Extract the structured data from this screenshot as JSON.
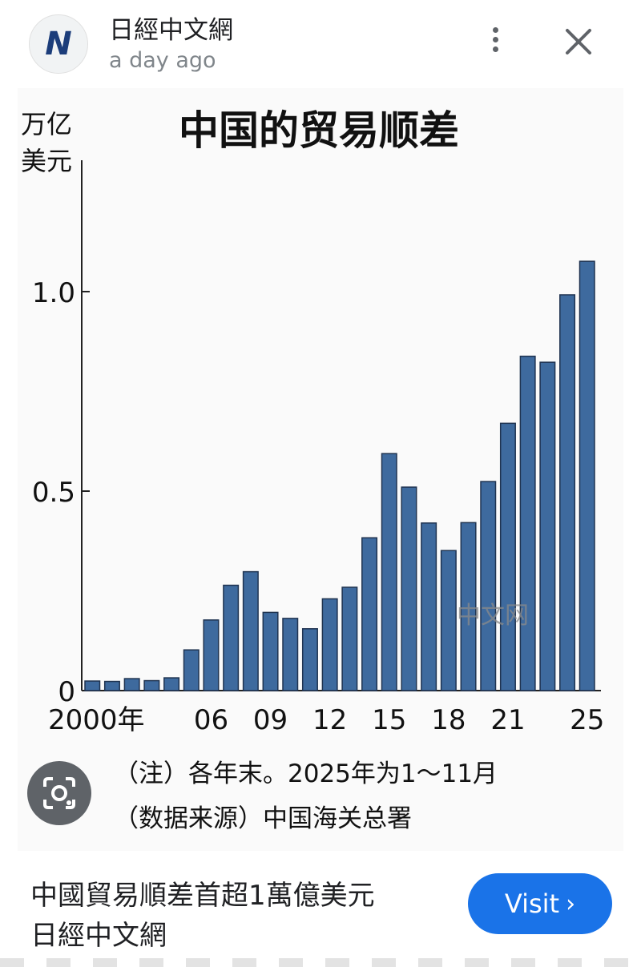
{
  "header": {
    "source_name": "日經中文網",
    "timestamp": "a day ago",
    "logo_letter": "N",
    "menu_icon": "more-vert-icon",
    "close_icon": "close-icon"
  },
  "image": {
    "lens_icon": "google-lens-icon",
    "watermark": "中文网"
  },
  "chart_data": {
    "type": "bar",
    "title": "中国的贸易顺差",
    "ylabel_line1": "万亿",
    "ylabel_line2": "美元",
    "ylim": [
      0,
      1.2
    ],
    "y_ticks": [
      "0",
      "0.5",
      "1.0"
    ],
    "x_ticks": [
      "2000年",
      "06",
      "09",
      "12",
      "15",
      "18",
      "21",
      "25"
    ],
    "categories": [
      "2000",
      "2001",
      "2002",
      "2003",
      "2004",
      "2005",
      "2006",
      "2007",
      "2008",
      "2009",
      "2010",
      "2011",
      "2012",
      "2013",
      "2014",
      "2015",
      "2016",
      "2017",
      "2018",
      "2019",
      "2020",
      "2021",
      "2022",
      "2023",
      "2024",
      "2025"
    ],
    "values": [
      0.024,
      0.023,
      0.03,
      0.025,
      0.032,
      0.102,
      0.177,
      0.264,
      0.298,
      0.196,
      0.181,
      0.155,
      0.23,
      0.259,
      0.383,
      0.594,
      0.51,
      0.42,
      0.351,
      0.421,
      0.524,
      0.67,
      0.838,
      0.823,
      0.992,
      1.076
    ],
    "note": "（注）各年末。2025年为1～11月",
    "source": "（数据来源）中国海关总署",
    "bar_color": "#3e6a9e"
  },
  "card": {
    "headline": "中國貿易順差首超1萬億美元",
    "source": "日經中文網",
    "visit_label": "Visit",
    "visit_icon": "chevron-right-icon"
  },
  "colors": {
    "accent": "#1a73e8"
  }
}
